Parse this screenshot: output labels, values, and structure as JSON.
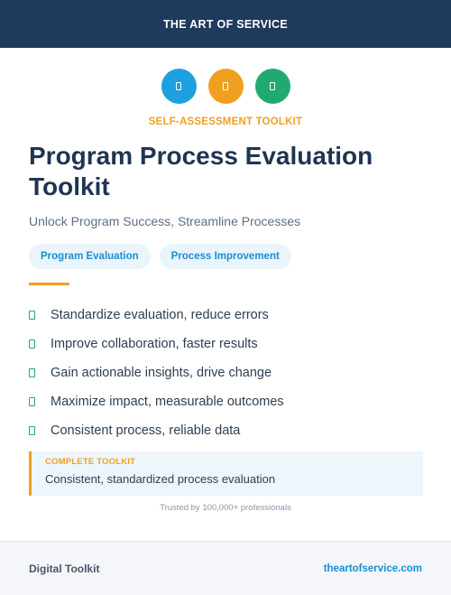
{
  "header": {
    "brand": "THE ART OF SERVICE",
    "color": "#1f3a5c"
  },
  "icons": [
    {
      "name": "document-icon",
      "color": "#1ea0e0"
    },
    {
      "name": "document-icon",
      "color": "#f0a020"
    },
    {
      "name": "document-icon",
      "color": "#1faa70"
    }
  ],
  "eyebrow": "SELF-ASSESSMENT TOOLKIT",
  "title_lines": [
    "Program Process Evaluation",
    "Toolkit"
  ],
  "subtitle": "Unlock Program Success, Streamline Processes",
  "tags": [
    "Program Evaluation",
    "Process Improvement"
  ],
  "benefits": [
    "Standardize evaluation, reduce errors",
    "Improve collaboration, faster results",
    "Gain actionable insights, drive change",
    "Maximize impact, measurable outcomes",
    "Consistent process, reliable data"
  ],
  "callout": {
    "kicker": "COMPLETE TOOLKIT",
    "text": "Consistent, standardized process evaluation"
  },
  "trusted": "Trusted by 100,000+ professionals",
  "footer": {
    "left": "Digital Toolkit",
    "right": "theartofservice.com"
  },
  "colors": {
    "accent": "#f0a020",
    "link": "#1a8fd0",
    "check": "#1faa70"
  }
}
